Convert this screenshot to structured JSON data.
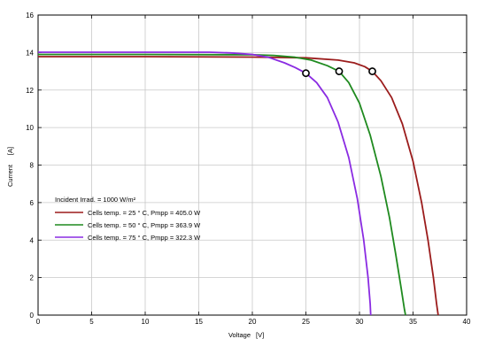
{
  "chart_data": {
    "type": "line",
    "xlabel": "Voltage",
    "xunit": "[V]",
    "ylabel": "Current",
    "yunit": "[A]",
    "xlim": [
      0,
      40
    ],
    "ylim": [
      0,
      16
    ],
    "xticks": [
      0,
      5,
      10,
      15,
      20,
      25,
      30,
      35,
      40
    ],
    "yticks": [
      0,
      2,
      4,
      6,
      8,
      10,
      12,
      14,
      16
    ],
    "grid": true,
    "legend_position": "bottom-left",
    "legend_title": "Incident Irrad. = 1000 W/m²",
    "series": [
      {
        "name": "Cells temp. = 25 ° C,  Pmpp = 405.0 W",
        "color": "#9b1c1c",
        "points": [
          [
            0,
            13.78
          ],
          [
            10,
            13.78
          ],
          [
            20,
            13.76
          ],
          [
            25,
            13.72
          ],
          [
            28,
            13.6
          ],
          [
            29.5,
            13.45
          ],
          [
            30.5,
            13.25
          ],
          [
            31.2,
            13.0
          ],
          [
            32,
            12.5
          ],
          [
            33,
            11.6
          ],
          [
            34,
            10.2
          ],
          [
            35,
            8.2
          ],
          [
            35.8,
            6.0
          ],
          [
            36.4,
            4.0
          ],
          [
            36.9,
            2.0
          ],
          [
            37.2,
            0.6
          ],
          [
            37.35,
            0
          ]
        ],
        "mpp": [
          31.2,
          13.0
        ]
      },
      {
        "name": "Cells temp. = 50 ° C,  Pmpp = 363.9 W",
        "color": "#1f8a1f",
        "points": [
          [
            0,
            13.9
          ],
          [
            10,
            13.9
          ],
          [
            20,
            13.88
          ],
          [
            22,
            13.85
          ],
          [
            24,
            13.75
          ],
          [
            25.5,
            13.6
          ],
          [
            27,
            13.3
          ],
          [
            28.1,
            13.0
          ],
          [
            29,
            12.4
          ],
          [
            30,
            11.3
          ],
          [
            31,
            9.6
          ],
          [
            32,
            7.4
          ],
          [
            32.8,
            5.2
          ],
          [
            33.4,
            3.2
          ],
          [
            33.9,
            1.4
          ],
          [
            34.2,
            0.3
          ],
          [
            34.3,
            0
          ]
        ],
        "mpp": [
          28.1,
          13.0
        ]
      },
      {
        "name": "Cells temp. = 75 ° C,  Pmpp = 322.3 W",
        "color": "#8a2be2",
        "points": [
          [
            0,
            14.02
          ],
          [
            10,
            14.02
          ],
          [
            16,
            14.02
          ],
          [
            18,
            13.98
          ],
          [
            20,
            13.9
          ],
          [
            21.5,
            13.75
          ],
          [
            23,
            13.45
          ],
          [
            24,
            13.2
          ],
          [
            25,
            12.9
          ],
          [
            26,
            12.4
          ],
          [
            27,
            11.6
          ],
          [
            28,
            10.3
          ],
          [
            29,
            8.4
          ],
          [
            29.8,
            6.2
          ],
          [
            30.4,
            4.0
          ],
          [
            30.8,
            2.0
          ],
          [
            31.0,
            0.6
          ],
          [
            31.05,
            0
          ]
        ],
        "mpp": [
          25.0,
          12.9
        ]
      }
    ]
  }
}
